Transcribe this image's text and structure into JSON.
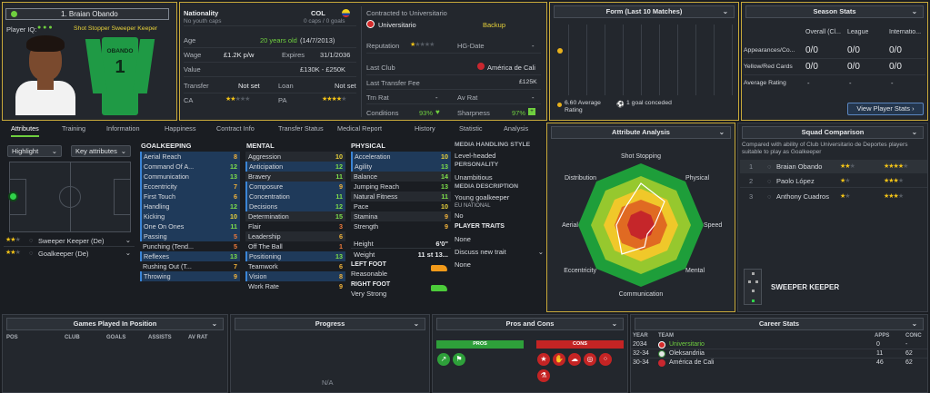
{
  "player": {
    "number_name": "1. Braian Obando",
    "iq_label": "Player IQ:",
    "roles": "Shot Stopper  Sweeper Keeper",
    "shirt_name": "OBANDO",
    "shirt_number": "1"
  },
  "info": {
    "nationality_label": "Nationality",
    "nationality_code": "COL",
    "youth_caps": "No youth caps",
    "caps": "0 caps / 0 goals",
    "age_label": "Age",
    "age": "20 years old",
    "dob": "(14/7/2013)",
    "wage_label": "Wage",
    "wage": "£1.2K p/w",
    "expires_label": "Expires",
    "expires": "31/1/2036",
    "value_label": "Value",
    "value": "£130K - £250K",
    "transfer_label": "Transfer",
    "transfer": "Not set",
    "loan_label": "Loan",
    "loan": "Not set",
    "ca_label": "CA",
    "pa_label": "PA"
  },
  "contract": {
    "contracted_to": "Contracted to Universitario",
    "club": "Universitario",
    "status": "Backup",
    "reputation_label": "Reputation",
    "hg_label": "HG-Date",
    "hg_value": "-",
    "last_club_label": "Last Club",
    "last_club": "América de Cali",
    "last_fee_label": "Last Transfer Fee",
    "last_fee": "£125K",
    "trn_label": "Trn Rat",
    "trn": "-",
    "av_label": "Av Rat",
    "av": "-",
    "cond_label": "Conditions",
    "cond": "93%",
    "sharp_label": "Sharpness",
    "sharp": "97%"
  },
  "form": {
    "title": "Form (Last 10 Matches)",
    "avg": "6.60 Average Rating",
    "conceded": "1 goal conceded"
  },
  "season": {
    "title": "Season Stats",
    "cols": [
      "Overall (Cl...",
      "League",
      "Internatio..."
    ],
    "rows": [
      {
        "label": "Appearances/Co...",
        "v": [
          "0/0",
          "0/0",
          "0/0"
        ]
      },
      {
        "label": "Yellow/Red Cards",
        "v": [
          "0/0",
          "0/0",
          "0/0"
        ]
      },
      {
        "label": "Average Rating",
        "v": [
          "-",
          "-",
          "-"
        ]
      }
    ],
    "button": "View Player Stats"
  },
  "tabs": [
    "Attributes",
    "Training",
    "Information",
    "Happiness",
    "Contract Info",
    "Transfer Status",
    "Medical Report",
    "History",
    "Statistic",
    "Analysis"
  ],
  "left": {
    "highlight": "Highlight",
    "key_attr": "Key attributes",
    "role1": "Sweeper Keeper (De)",
    "role2": "Goalkeeper (De)"
  },
  "gk_title": "GOALKEEPING",
  "goalkeeping": [
    [
      "Aerial Reach",
      "8"
    ],
    [
      "Command Of A...",
      "12"
    ],
    [
      "Communication",
      "13"
    ],
    [
      "Eccentricity",
      "7"
    ],
    [
      "First Touch",
      "6"
    ],
    [
      "Handling",
      "12"
    ],
    [
      "Kicking",
      "10"
    ],
    [
      "One On Ones",
      "11"
    ],
    [
      "Passing",
      "5"
    ],
    [
      "Punching (Tend...",
      "5"
    ],
    [
      "Reflexes",
      "13"
    ],
    [
      "Rushing Out (T...",
      "7"
    ],
    [
      "Throwing",
      "9"
    ]
  ],
  "gk_hl": [
    true,
    true,
    true,
    true,
    true,
    true,
    true,
    true,
    true,
    false,
    true,
    false,
    true
  ],
  "mental_title": "MENTAL",
  "mental": [
    [
      "Aggression",
      "10"
    ],
    [
      "Anticipation",
      "12"
    ],
    [
      "Bravery",
      "11"
    ],
    [
      "Composure",
      "9"
    ],
    [
      "Concentration",
      "11"
    ],
    [
      "Decisions",
      "12"
    ],
    [
      "Determination",
      "15"
    ],
    [
      "Flair",
      "3"
    ],
    [
      "Leadership",
      "6"
    ],
    [
      "Off The Ball",
      "1"
    ],
    [
      "Positioning",
      "13"
    ],
    [
      "Teamwork",
      "6"
    ],
    [
      "Vision",
      "8"
    ],
    [
      "Work Rate",
      "9"
    ]
  ],
  "mental_hl": [
    false,
    true,
    false,
    true,
    true,
    true,
    false,
    false,
    false,
    false,
    true,
    false,
    true,
    false
  ],
  "physical_title": "PHYSICAL",
  "physical": [
    [
      "Acceleration",
      "10"
    ],
    [
      "Agility",
      "13"
    ],
    [
      "Balance",
      "14"
    ],
    [
      "Jumping Reach",
      "13"
    ],
    [
      "Natural Fitness",
      "11"
    ],
    [
      "Pace",
      "10"
    ],
    [
      "Stamina",
      "9"
    ],
    [
      "Strength",
      "9"
    ]
  ],
  "physical_hl": [
    true,
    true,
    false,
    false,
    false,
    false,
    false,
    false
  ],
  "height_label": "Height",
  "height": "6'0\"",
  "weight_label": "Weight",
  "weight": "11 st 13...",
  "left_foot_label": "LEFT FOOT",
  "left_foot": "Reasonable",
  "right_foot_label": "RIGHT FOOT",
  "right_foot": "Very Strong",
  "media": {
    "style_label": "MEDIA HANDLING STYLE",
    "style": "Level-headed",
    "personality_label": "PERSONALITY",
    "personality": "Unambitious",
    "desc_label": "MEDIA DESCRIPTION",
    "desc": "Young goalkeeper",
    "eu_label": "EU NATIONAL",
    "eu": "No",
    "traits_label": "PLAYER TRAITS",
    "traits": "None",
    "discuss": "Discuss new trait",
    "traits2": "None"
  },
  "analysis": {
    "title": "Attribute Analysis",
    "labels": [
      "Shot Stopping",
      "Physical",
      "Speed",
      "Mental",
      "Communication",
      "Eccentricity",
      "Aerial",
      "Distribution"
    ]
  },
  "squad": {
    "title": "Squad Comparison",
    "desc": "Compared with ability of Club Universitario de Deportes players suitable to play as Goalkeeper",
    "rows": [
      {
        "n": "1",
        "name": "Braian Obando"
      },
      {
        "n": "2",
        "name": "Paolo López"
      },
      {
        "n": "3",
        "name": "Anthony Cuadros"
      }
    ],
    "role": "SWEEPER KEEPER"
  },
  "bottom": {
    "games_title": "Games Played In Position",
    "games_cols": [
      "POS",
      "CLUB",
      "GOALS",
      "ASSISTS",
      "AV RAT"
    ],
    "progress_title": "Progress",
    "progress_na": "N/A",
    "pros_title": "Pros and Cons",
    "pros": "PROS",
    "cons": "CONS",
    "career_title": "Career Stats",
    "career_cols": [
      "YEAR",
      "TEAM",
      "APPS",
      "CONC"
    ],
    "career": [
      [
        "2034",
        "Universitario",
        "0",
        "-"
      ],
      [
        "32-34",
        "Oleksandriia",
        "11",
        "62"
      ],
      [
        "30-34",
        "América de Cali",
        "46",
        "62"
      ]
    ]
  },
  "colors": {
    "accent": "#6fcf3f",
    "gold": "#c8a93a",
    "selected": "#1f3a5a"
  }
}
